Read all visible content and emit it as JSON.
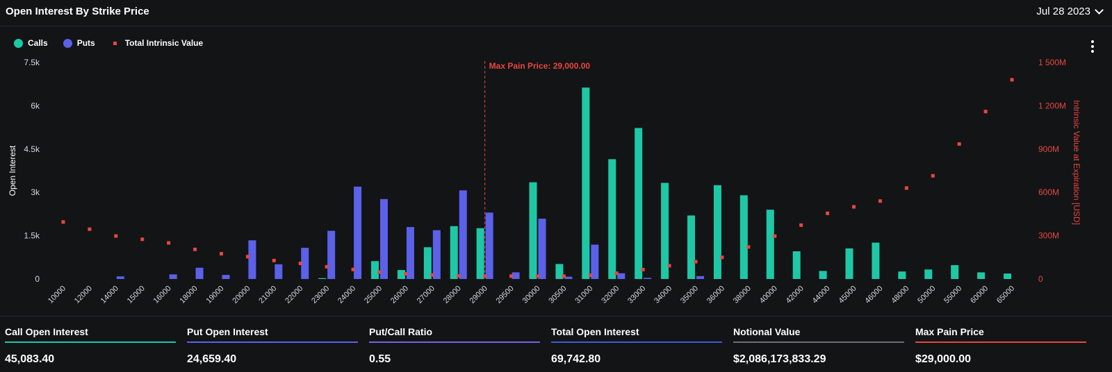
{
  "header": {
    "title": "Open Interest By Strike Price",
    "date": "Jul 28 2023"
  },
  "legend": [
    {
      "label": "Calls",
      "color": "#1ec8a6",
      "shape": "circle"
    },
    {
      "label": "Puts",
      "color": "#5b61e9",
      "shape": "circle"
    },
    {
      "label": "Total Intrinsic Value",
      "color": "#e8463f",
      "shape": "square"
    }
  ],
  "chart_data": {
    "type": "bar",
    "categories": [
      "10000",
      "12000",
      "14000",
      "15000",
      "16000",
      "18000",
      "19000",
      "20000",
      "21000",
      "22000",
      "23000",
      "24000",
      "25000",
      "26000",
      "27000",
      "28000",
      "29000",
      "29500",
      "30000",
      "30500",
      "31000",
      "32000",
      "33000",
      "34000",
      "35000",
      "36000",
      "38000",
      "40000",
      "42000",
      "44000",
      "45000",
      "46000",
      "48000",
      "50000",
      "55000",
      "60000",
      "65000"
    ],
    "series": [
      {
        "name": "Calls",
        "color": "#1ec8a6",
        "axis": "left",
        "values": [
          0,
          0,
          0,
          0,
          0,
          0,
          0,
          0,
          0,
          0,
          30,
          0,
          620,
          310,
          1100,
          1830,
          1760,
          0,
          3350,
          520,
          6630,
          4150,
          5230,
          3330,
          2200,
          3250,
          2900,
          2400,
          960,
          280,
          1060,
          1260,
          260,
          330,
          480,
          230,
          190
        ]
      },
      {
        "name": "Puts",
        "color": "#5b61e9",
        "axis": "left",
        "values": [
          0,
          0,
          90,
          0,
          160,
          390,
          140,
          1340,
          510,
          1080,
          1670,
          3200,
          2770,
          1800,
          1690,
          3070,
          2300,
          230,
          2090,
          80,
          1190,
          200,
          40,
          0,
          100,
          0,
          0,
          0,
          0,
          0,
          0,
          0,
          0,
          0,
          0,
          0,
          0
        ]
      },
      {
        "name": "Total Intrinsic Value",
        "color": "#e8463f",
        "axis": "right",
        "type": "scatter",
        "values": [
          395,
          345,
          298,
          275,
          250,
          205,
          175,
          155,
          128,
          108,
          85,
          66,
          48,
          36,
          28,
          22,
          20,
          20,
          20,
          20,
          26,
          40,
          65,
          92,
          120,
          150,
          222,
          297,
          373,
          455,
          500,
          540,
          630,
          715,
          935,
          1160,
          1380
        ]
      }
    ],
    "left_axis": {
      "label": "Open Interest",
      "ylim": [
        0,
        7500
      ],
      "ticks": [
        0,
        1500,
        3000,
        4500,
        6000,
        7500
      ],
      "tick_labels": [
        "0",
        "1.5k",
        "3k",
        "4.5k",
        "6k",
        "7.5k"
      ]
    },
    "right_axis": {
      "label": "Intrinsic Value at Expiration [USD]",
      "unit": "M",
      "ylim": [
        0,
        1500
      ],
      "ticks": [
        0,
        300,
        600,
        900,
        1200,
        1500
      ],
      "tick_labels": [
        "0",
        "300M",
        "600M",
        "900M",
        "1 200M",
        "1 500M"
      ]
    },
    "annotation": {
      "label": "Max Pain Price: 29,000.00",
      "category": "29000",
      "color": "#e8463f"
    }
  },
  "stats": [
    {
      "label": "Call Open Interest",
      "value": "45,083.40",
      "color": "#1ec8a6"
    },
    {
      "label": "Put Open Interest",
      "value": "24,659.40",
      "color": "#5b61e9"
    },
    {
      "label": "Put/Call Ratio",
      "value": "0.55",
      "color": "#7a60e6"
    },
    {
      "label": "Total Open Interest",
      "value": "69,742.80",
      "color": "#3f5ad8"
    },
    {
      "label": "Notional Value",
      "value": "$2,086,173,833.29",
      "color": "#6b6f78"
    },
    {
      "label": "Max Pain Price",
      "value": "$29,000.00",
      "color": "#e8463f"
    }
  ]
}
